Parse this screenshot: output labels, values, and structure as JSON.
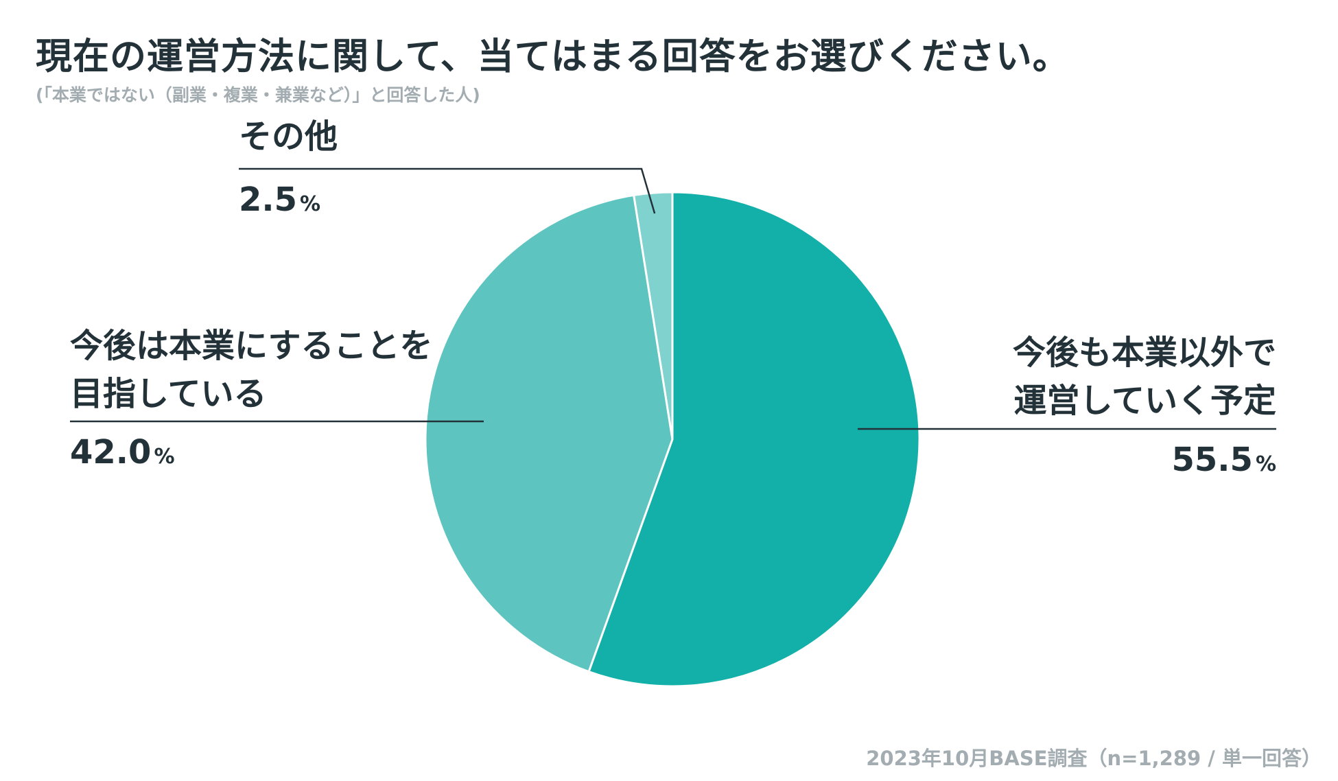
{
  "title": "現在の運営方法に関して、当てはまる回答をお選びください。",
  "subtitle": "(「本業ではない（副業・複業・兼業など）」と回答した人)",
  "source": "2023年10月BASE調査（n=1,289 / 単一回答）",
  "chart_data": {
    "type": "pie",
    "unit": "%",
    "slices": [
      {
        "label_lines": [
          "今後も本業以外で",
          "運営していく予定"
        ],
        "value": 55.5,
        "value_text": "55.5",
        "color": "#12b0a9"
      },
      {
        "label_lines": [
          "今後は本業にすることを",
          "目指している"
        ],
        "value": 42.0,
        "value_text": "42.0",
        "color": "#5dc4bf"
      },
      {
        "label_lines": [
          "その他"
        ],
        "value": 2.5,
        "value_text": "2.5",
        "color": "#80d2ce"
      }
    ],
    "colors": {
      "text": "#233238",
      "muted": "#a3adb1",
      "separator": "#ffffff"
    }
  }
}
